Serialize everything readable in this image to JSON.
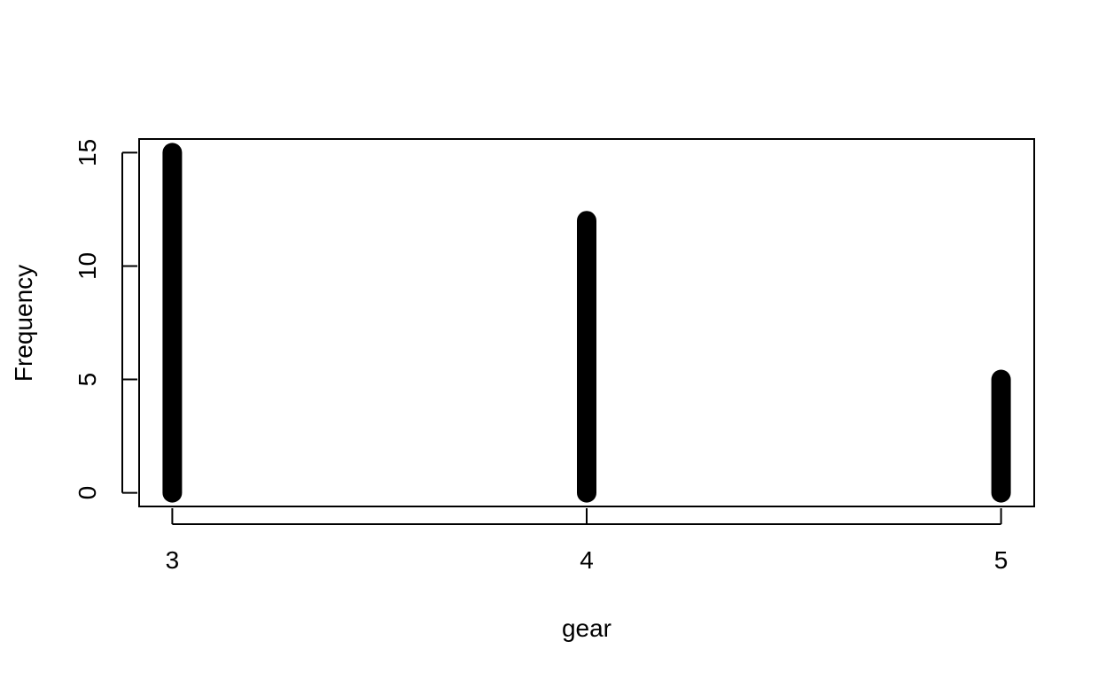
{
  "chart_data": {
    "type": "bar",
    "categories": [
      "3",
      "4",
      "5"
    ],
    "x": [
      3,
      4,
      5
    ],
    "values": [
      15,
      12,
      5
    ],
    "xlabel": "gear",
    "ylabel": "Frequency",
    "xlim": [
      2.92,
      5.08
    ],
    "ylim": [
      -0.6,
      15.6
    ],
    "yticks": [
      0,
      5,
      10,
      15
    ],
    "xticks": [
      3,
      4,
      5
    ],
    "grid": false,
    "bar_color": "#000000"
  }
}
